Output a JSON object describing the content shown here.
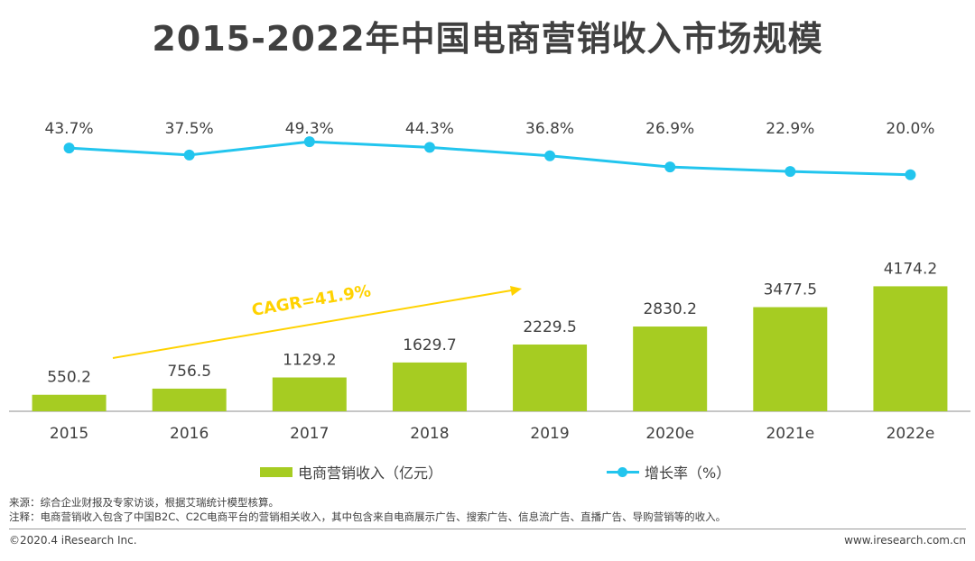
{
  "title": "2015-2022年中国电商营销收入市场规模",
  "chart_data": {
    "type": "bar+line",
    "categories": [
      "2015",
      "2016",
      "2017",
      "2018",
      "2019",
      "2020e",
      "2021e",
      "2022e"
    ],
    "series": [
      {
        "name": "电商营销收入（亿元）",
        "kind": "bar",
        "color": "#A6CC22",
        "values": [
          550.2,
          756.5,
          1129.2,
          1629.7,
          2229.5,
          2830.2,
          3477.5,
          4174.2
        ],
        "labels": [
          "550.2",
          "756.5",
          "1129.2",
          "1629.7",
          "2229.5",
          "2830.2",
          "3477.5",
          "4174.2"
        ]
      },
      {
        "name": "增长率（%）",
        "kind": "line",
        "color": "#22C5EE",
        "values": [
          43.7,
          37.5,
          49.3,
          44.3,
          36.8,
          26.9,
          22.9,
          20.0
        ],
        "labels": [
          "43.7%",
          "37.5%",
          "49.3%",
          "44.3%",
          "36.8%",
          "26.9%",
          "22.9%",
          "20.0%"
        ]
      }
    ],
    "annotation": {
      "text": "CAGR=41.9%",
      "color": "#FFD200"
    },
    "bar_ylim": [
      0,
      4500
    ],
    "line_ylim": [
      0,
      60
    ]
  },
  "legend": {
    "bar_label": "电商营销收入（亿元）",
    "line_label": "增长率（%）"
  },
  "notes": {
    "source": "来源：综合企业财报及专家访谈，根据艾瑞统计模型核算。",
    "note": "注释：电商营销收入包含了中国B2C、C2C电商平台的营销相关收入，其中包含来自电商展示广告、搜索广告、信息流广告、直播广告、导购营销等的收入。"
  },
  "footer": {
    "copyright": "©2020.4 iResearch Inc.",
    "website": "www.iresearch.com.cn"
  }
}
